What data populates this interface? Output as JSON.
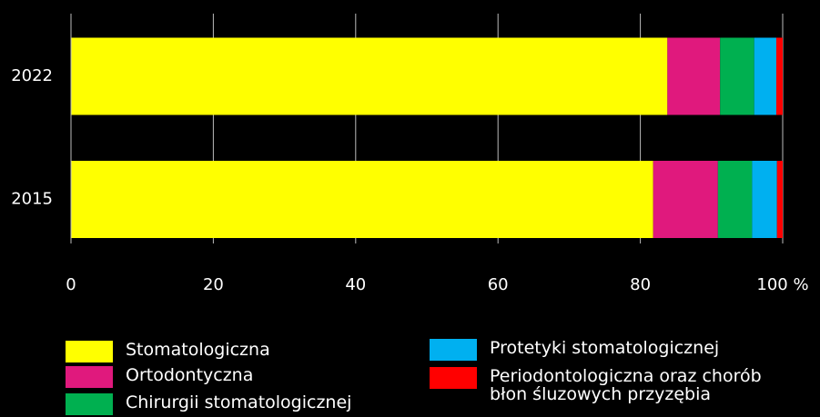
{
  "chart_data": {
    "type": "stacked-barh",
    "categories": [
      "2022",
      "2015"
    ],
    "series": [
      {
        "name": "Stomatologiczna",
        "color": "#ffff00",
        "values": [
          83.8,
          81.8
        ]
      },
      {
        "name": "Ortodontyczna",
        "color": "#e0197d",
        "values": [
          7.4,
          9.1
        ]
      },
      {
        "name": "Chirurgii stomatologicznej",
        "color": "#00b050",
        "values": [
          4.8,
          4.8
        ]
      },
      {
        "name": "Protetyki stomatologicznej",
        "color": "#00b0f0",
        "values": [
          3.1,
          3.5
        ]
      },
      {
        "name": "Periodontologiczna oraz chorób błon śluzowych przyzębia",
        "color": "#ff0000",
        "values": [
          0.9,
          0.8
        ]
      }
    ],
    "xlim": [
      0,
      100
    ],
    "xticks": [
      0,
      20,
      40,
      60,
      80,
      {
        "value": 100,
        "label": "100 %"
      }
    ],
    "grid": true
  }
}
